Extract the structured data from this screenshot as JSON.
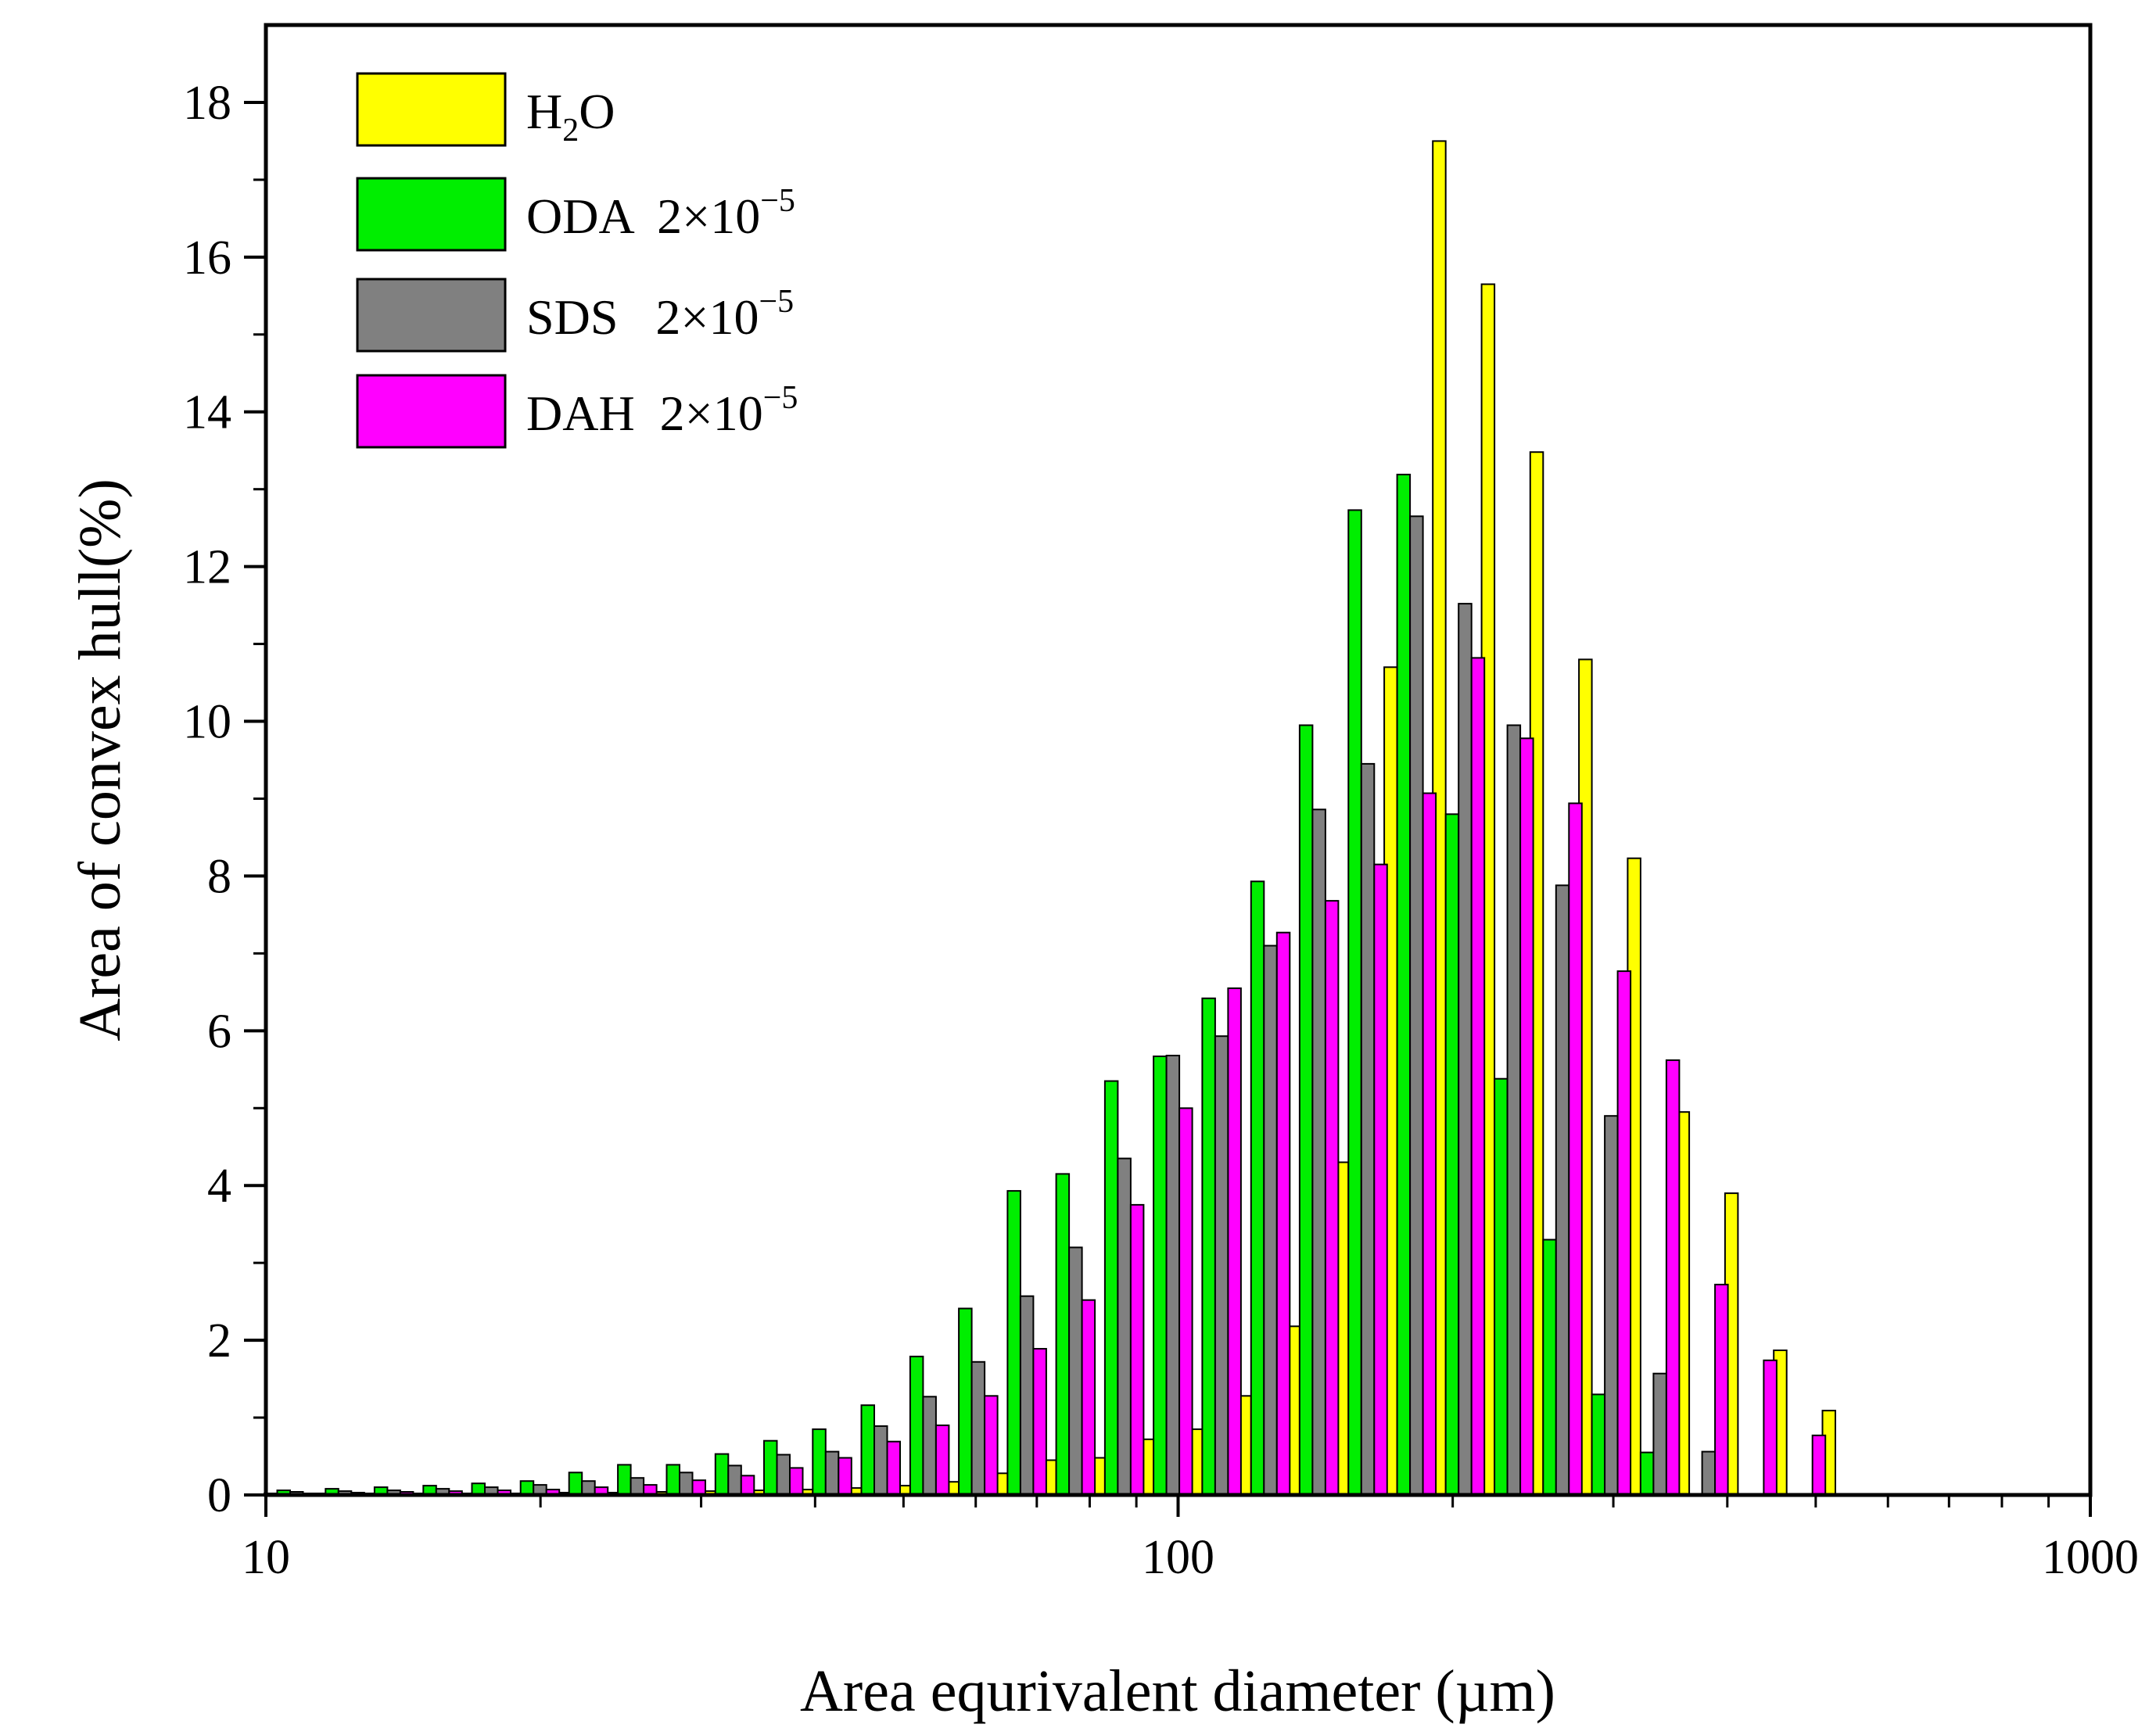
{
  "chart_data": {
    "type": "bar",
    "x_scale": "log",
    "xlabel": "Area equrivalent diameter (µm)",
    "ylabel": "Area of convex hull(%)",
    "xlim": [
      10,
      1000
    ],
    "ylim": [
      0,
      19
    ],
    "x_ticks": [
      {
        "value": 10,
        "label": "10"
      },
      {
        "value": 100,
        "label": "100"
      },
      {
        "value": 1000,
        "label": "1000"
      }
    ],
    "y_ticks": [
      {
        "value": 0,
        "label": "0"
      },
      {
        "value": 2,
        "label": "2"
      },
      {
        "value": 4,
        "label": "4"
      },
      {
        "value": 6,
        "label": "6"
      },
      {
        "value": 8,
        "label": "8"
      },
      {
        "value": 10,
        "label": "10"
      },
      {
        "value": 12,
        "label": "12"
      },
      {
        "value": 14,
        "label": "14"
      },
      {
        "value": 16,
        "label": "16"
      },
      {
        "value": 18,
        "label": "18"
      }
    ],
    "grid": false,
    "legend_position": "top-left",
    "series": [
      {
        "name": "H2O",
        "legend": {
          "base": "H",
          "sub": "2",
          "rest": "O"
        },
        "color": "#FFFF00",
        "x": [
          10.63,
          12.01,
          13.59,
          15.37,
          17.38,
          19.65,
          22.21,
          25.12,
          28.41,
          32.13,
          36.33,
          41.08,
          46.45,
          52.53,
          59.4,
          67.17,
          75.95,
          85.88,
          97.1,
          109.8,
          124.2,
          140.4,
          158.8,
          179.6,
          203.0,
          229.6,
          259.6,
          293.6,
          332.0,
          375.4,
          424.5,
          480.0,
          542.8,
          613.8,
          694.1,
          784.9,
          887.5
        ],
        "values": [
          0.02,
          0.02,
          0.02,
          0.02,
          0.02,
          0.02,
          0.03,
          0.03,
          0.04,
          0.05,
          0.06,
          0.07,
          0.09,
          0.12,
          0.17,
          0.28,
          0.45,
          0.48,
          0.72,
          0.85,
          1.28,
          2.18,
          4.3,
          10.7,
          17.5,
          15.65,
          13.48,
          10.8,
          8.23,
          4.95,
          3.9,
          1.87,
          1.09,
          0,
          0,
          0,
          0
        ]
      },
      {
        "name": "ODA 2×10⁻⁵",
        "legend": {
          "base": "ODA  2×10",
          "sup": "−5"
        },
        "color": "#00EE00",
        "x": [
          10.63,
          12.01,
          13.59,
          15.37,
          17.38,
          19.65,
          22.21,
          25.12,
          28.41,
          32.13,
          36.33,
          41.08,
          46.45,
          52.53,
          59.4,
          67.17,
          75.95,
          85.88,
          97.1,
          109.8,
          124.2,
          140.4,
          158.8,
          179.6,
          203.0,
          229.6,
          259.6,
          293.6,
          332.0,
          375.4,
          424.5,
          480.0,
          542.8,
          613.8,
          694.1,
          784.9,
          887.5
        ],
        "values": [
          0.06,
          0.08,
          0.1,
          0.12,
          0.15,
          0.18,
          0.29,
          0.39,
          0.39,
          0.53,
          0.7,
          0.85,
          1.16,
          1.79,
          2.41,
          3.93,
          4.15,
          5.35,
          5.67,
          6.42,
          7.93,
          9.95,
          12.73,
          13.19,
          8.8,
          5.38,
          3.3,
          1.3,
          0.55,
          0,
          0,
          0,
          0,
          0,
          0,
          0,
          0
        ]
      },
      {
        "name": "SDS  2×10⁻⁵",
        "legend": {
          "base": "SDS   2×10",
          "sup": "−5"
        },
        "color": "#808080",
        "x": [
          10.63,
          12.01,
          13.59,
          15.37,
          17.38,
          19.65,
          22.21,
          25.12,
          28.41,
          32.13,
          36.33,
          41.08,
          46.45,
          52.53,
          59.4,
          67.17,
          75.95,
          85.88,
          97.1,
          109.8,
          124.2,
          140.4,
          158.8,
          179.6,
          203.0,
          229.6,
          259.6,
          293.6,
          332.0,
          375.4,
          424.5,
          480.0,
          542.8,
          613.8,
          694.1,
          784.9,
          887.5
        ],
        "values": [
          0.04,
          0.05,
          0.06,
          0.08,
          0.1,
          0.13,
          0.18,
          0.22,
          0.29,
          0.38,
          0.52,
          0.56,
          0.89,
          1.27,
          1.72,
          2.57,
          3.2,
          4.35,
          5.68,
          5.93,
          7.1,
          8.86,
          9.45,
          12.65,
          11.52,
          9.95,
          7.88,
          4.9,
          1.57,
          0.56,
          0,
          0,
          0,
          0,
          0,
          0,
          0
        ]
      },
      {
        "name": "DAH  2×10⁻⁵",
        "legend": {
          "base": "DAH  2×10",
          "sup": "−5"
        },
        "color": "#FF00FF",
        "x": [
          10.63,
          12.01,
          13.59,
          15.37,
          17.38,
          19.65,
          22.21,
          25.12,
          28.41,
          32.13,
          36.33,
          41.08,
          46.45,
          52.53,
          59.4,
          67.17,
          75.95,
          85.88,
          97.1,
          109.8,
          124.2,
          140.4,
          158.8,
          179.6,
          203.0,
          229.6,
          259.6,
          293.6,
          332.0,
          375.4,
          424.5,
          480.0,
          542.8,
          613.8,
          694.1,
          784.9,
          887.5
        ],
        "values": [
          0.02,
          0.03,
          0.04,
          0.05,
          0.06,
          0.07,
          0.1,
          0.13,
          0.19,
          0.25,
          0.35,
          0.48,
          0.69,
          0.9,
          1.28,
          1.89,
          2.52,
          3.75,
          5.0,
          6.55,
          7.27,
          7.68,
          8.15,
          9.07,
          10.82,
          9.78,
          8.94,
          6.77,
          5.62,
          2.72,
          1.74,
          0.77,
          0,
          0,
          0,
          0,
          0
        ]
      }
    ]
  }
}
